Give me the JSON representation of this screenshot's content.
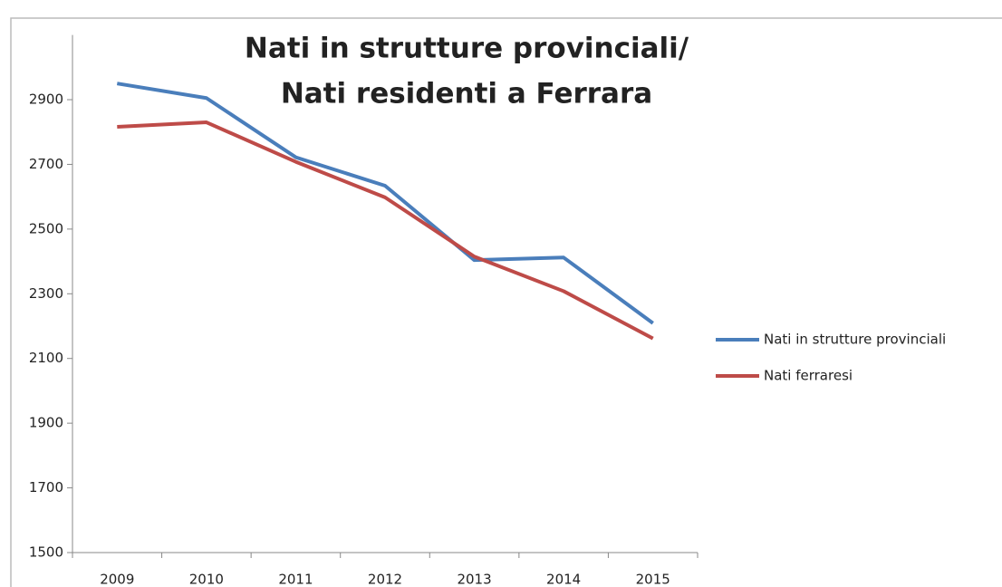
{
  "chart_data": {
    "type": "line",
    "title": [
      "Nati in strutture provinciali/",
      "Nati residenti a Ferrara"
    ],
    "title_color": "#e83fc6",
    "categories": [
      "2009",
      "2010",
      "2011",
      "2012",
      "2013",
      "2014",
      "2015"
    ],
    "series": [
      {
        "name": "Nati in strutture provinciali",
        "color": "#4a7ebb",
        "values": [
          2950,
          2905,
          2722,
          2634,
          2404,
          2412,
          2209
        ]
      },
      {
        "name": "Nati ferraresi",
        "color": "#be4b48",
        "values": [
          2816,
          2830,
          2708,
          2598,
          2415,
          2308,
          2162
        ]
      }
    ],
    "ylim": [
      1500,
      3100
    ],
    "yticks": [
      1500,
      1700,
      1900,
      2100,
      2300,
      2500,
      2700,
      2900
    ],
    "grid": false,
    "legend": "right"
  }
}
